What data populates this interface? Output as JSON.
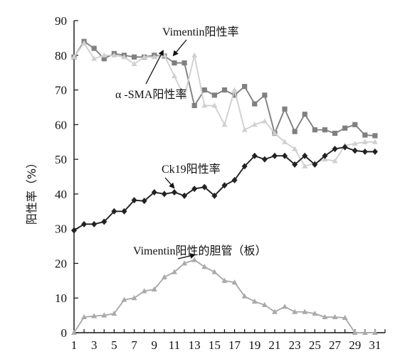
{
  "chart_data": {
    "type": "line",
    "title": "",
    "xlabel": "",
    "ylabel": "阳性率（%）",
    "xlim": [
      1,
      32
    ],
    "ylim": [
      0,
      90
    ],
    "x_ticks": [
      1,
      3,
      5,
      7,
      9,
      11,
      13,
      15,
      17,
      19,
      21,
      23,
      25,
      27,
      29,
      31
    ],
    "y_ticks": [
      0,
      10,
      20,
      30,
      40,
      50,
      60,
      70,
      80,
      90
    ],
    "grid": false,
    "x": [
      1,
      2,
      3,
      4,
      5,
      6,
      7,
      8,
      9,
      10,
      11,
      12,
      13,
      14,
      15,
      16,
      17,
      18,
      19,
      20,
      21,
      22,
      23,
      24,
      25,
      26,
      27,
      28,
      29,
      30,
      31,
      32
    ],
    "series": [
      {
        "name": "Vimentin阳性率",
        "color": "#808080",
        "marker": "square",
        "values": [
          79.5,
          84,
          82,
          79,
          80.5,
          80,
          79.5,
          79.5,
          80,
          79.8,
          77.8,
          77.8,
          65.5,
          70,
          68.5,
          70,
          68.5,
          71,
          66,
          68.5,
          57.5,
          64.5,
          58,
          63,
          58.5,
          58.5,
          57.5,
          59,
          60,
          57,
          56.8,
          null
        ]
      },
      {
        "name": "α-SMA阳性率",
        "color": "#d0d0d0",
        "marker": "triangle",
        "values": [
          79.5,
          83.5,
          79,
          80,
          80,
          79.5,
          77.5,
          79.5,
          79.5,
          80,
          74,
          68,
          80,
          65.5,
          65.5,
          60,
          70,
          58.5,
          60,
          61,
          57.5,
          55,
          53,
          48,
          49,
          50,
          49.5,
          54,
          54.5,
          55,
          55,
          null
        ]
      },
      {
        "name": "Ck19阳性率",
        "color": "#222222",
        "marker": "diamond",
        "values": [
          29.5,
          31.3,
          31.3,
          32,
          35,
          35,
          38.2,
          38,
          40.5,
          40,
          40.5,
          39.5,
          41.5,
          42,
          39.5,
          42.5,
          44,
          48,
          51,
          50,
          51,
          51,
          48.5,
          51,
          48.5,
          51,
          53,
          53.5,
          52.5,
          52.2,
          52.2,
          null
        ]
      },
      {
        "name": "Vimentin阳性的胆管（板）",
        "color": "#aaaaaa",
        "marker": "triangle",
        "values": [
          0,
          4.5,
          4.8,
          5,
          5.5,
          9.5,
          10,
          12,
          12.5,
          16,
          17.5,
          20,
          21,
          19,
          17.5,
          15,
          14.5,
          10.5,
          9,
          8,
          6,
          7.5,
          6,
          6,
          5.5,
          4.5,
          4.5,
          4.3,
          0,
          0,
          0,
          null
        ]
      }
    ],
    "annotations": [
      {
        "text": "Vimentin阳性率",
        "target_series": 0,
        "target_x": 10.5
      },
      {
        "text": "α -SMA阳性率",
        "target_series": 1,
        "target_x": 10
      },
      {
        "text": "Ck19阳性率",
        "target_series": 2,
        "target_x": 10.8
      },
      {
        "text": "Vimentin阳性的胆管（板）",
        "target_series": 3,
        "target_x": 13
      }
    ]
  }
}
